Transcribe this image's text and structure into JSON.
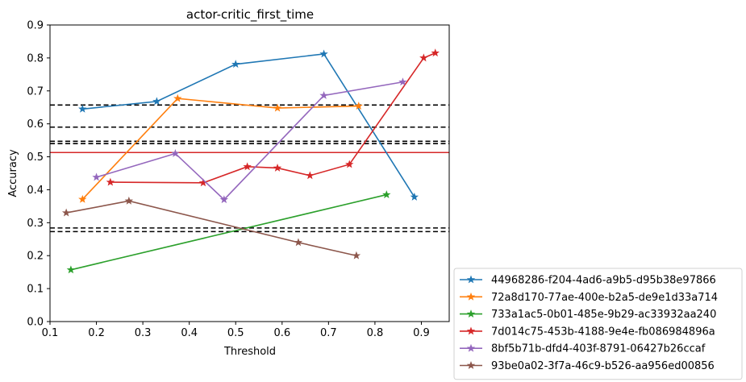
{
  "chart_data": {
    "type": "line",
    "title": "actor-critic_first_time",
    "xlabel": "Threshold",
    "ylabel": "Accuracy",
    "xlim": [
      0.1,
      0.96
    ],
    "ylim": [
      0.0,
      0.9
    ],
    "xticks": [
      "0.1",
      "0.2",
      "0.3",
      "0.4",
      "0.5",
      "0.6",
      "0.7",
      "0.8",
      "0.9"
    ],
    "yticks": [
      "0.0",
      "0.1",
      "0.2",
      "0.3",
      "0.4",
      "0.5",
      "0.6",
      "0.7",
      "0.8",
      "0.9"
    ],
    "grid": false,
    "legend_position": "outside-bottom-right",
    "marker": "star",
    "series": [
      {
        "name": "44968286-f204-4ad6-a9b5-d95b38e97866",
        "color": "#1f77b4",
        "x": [
          0.17,
          0.33,
          0.5,
          0.69,
          0.885
        ],
        "y": [
          0.645,
          0.668,
          0.781,
          0.812,
          0.378
        ]
      },
      {
        "name": "72a8d170-77ae-400e-b2a5-de9e1d33a714",
        "color": "#ff7f0e",
        "x": [
          0.17,
          0.375,
          0.59,
          0.765
        ],
        "y": [
          0.371,
          0.677,
          0.648,
          0.654
        ]
      },
      {
        "name": "733a1ac5-0b01-485e-9b29-ac33932aa240",
        "color": "#2ca02c",
        "x": [
          0.145,
          0.825
        ],
        "y": [
          0.157,
          0.385
        ]
      },
      {
        "name": "7d014c75-453b-4188-9e4e-fb086984896a",
        "color": "#d62728",
        "x": [
          0.23,
          0.43,
          0.525,
          0.59,
          0.66,
          0.745,
          0.905,
          0.93
        ],
        "y": [
          0.423,
          0.421,
          0.47,
          0.466,
          0.443,
          0.477,
          0.8,
          0.815
        ]
      },
      {
        "name": "8bf5b71b-dfd4-403f-8791-06427b26ccaf",
        "color": "#9467bd",
        "x": [
          0.2,
          0.37,
          0.475,
          0.69,
          0.86
        ],
        "y": [
          0.438,
          0.51,
          0.37,
          0.686,
          0.727
        ]
      },
      {
        "name": "93be0a02-3f7a-46c9-b526-aa956ed00856",
        "color": "#8c564b",
        "x": [
          0.135,
          0.27,
          0.635,
          0.76
        ],
        "y": [
          0.33,
          0.366,
          0.24,
          0.2
        ]
      }
    ],
    "hlines": [
      {
        "y": 0.657,
        "color": "#000000",
        "style": "dashed"
      },
      {
        "y": 0.59,
        "color": "#000000",
        "style": "dashed"
      },
      {
        "y": 0.547,
        "color": "#000000",
        "style": "dashed"
      },
      {
        "y": 0.54,
        "color": "#000000",
        "style": "dashed"
      },
      {
        "y": 0.284,
        "color": "#000000",
        "style": "dashed"
      },
      {
        "y": 0.273,
        "color": "#000000",
        "style": "dashed"
      },
      {
        "y": 0.513,
        "color": "#d62728",
        "style": "solid"
      }
    ]
  }
}
